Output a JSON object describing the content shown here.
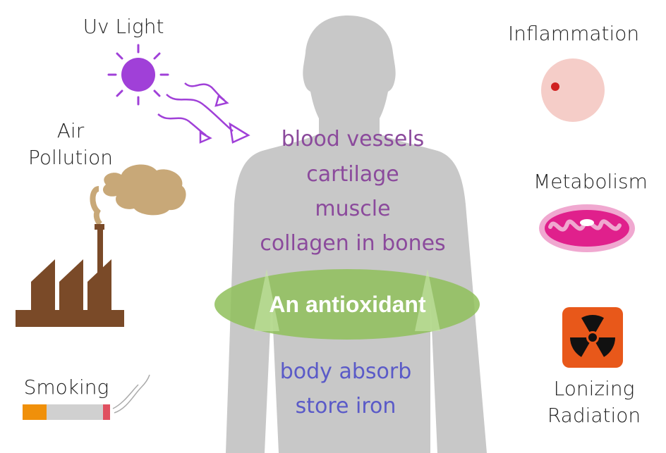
{
  "labels": {
    "uv_light": "Uv Light",
    "air_pollution_line1": "Air",
    "air_pollution_line2": "Pollution",
    "smoking": "Smoking",
    "inflammation": "Inflammation",
    "metabolism": "Metabolism",
    "ionizing_line1": "Lonizing",
    "ionizing_line2": "Radiation"
  },
  "organs": [
    "blood vessels",
    "cartilage",
    "muscle",
    "collagen in bones"
  ],
  "center": "An antioxidant",
  "absorb": [
    "body absorb",
    "store iron"
  ],
  "icons": {
    "uv": "sun-icon",
    "pollution": "factory-icon",
    "smoking": "cigarette-icon",
    "inflammation": "inflamed-cell-icon",
    "metabolism": "mitochondrion-icon",
    "radiation": "radiation-icon",
    "body": "human-silhouette"
  },
  "colors": {
    "body": "#c8c8c8",
    "uv": "#a040d8",
    "organ_text": "#8b4a9c",
    "absorb_text": "#5a5ac8",
    "ellipse": "#8fbf5a",
    "factory": "#7a4a28",
    "smoke": "#c8a878",
    "radiation_bg": "#e8581a",
    "mito": "#e0208c"
  }
}
